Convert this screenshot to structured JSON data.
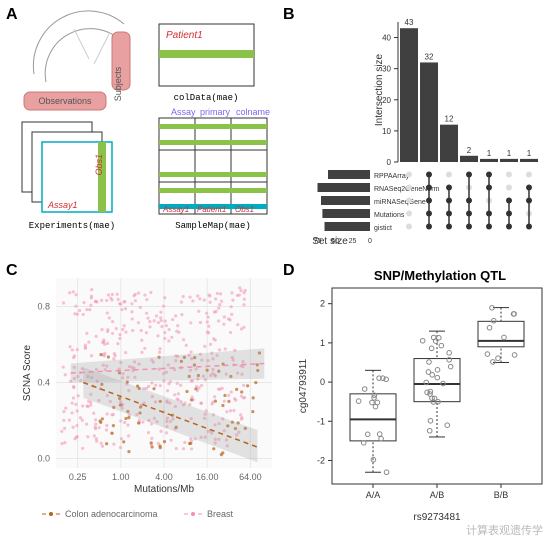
{
  "panels": {
    "A": "A",
    "B": "B",
    "C": "C",
    "D": "D"
  },
  "A": {
    "subjects_label": "Subjects",
    "observations_label": "Observations",
    "patient1": "Patient1",
    "obs1": "Obs1",
    "assay1": "Assay1",
    "colData": "colData(mae)",
    "experiments": "Experiments(mae)",
    "sampleMap": "SampleMap(mae)",
    "assay_col": "Assay",
    "primary_col": "primary",
    "colname_col": "colname",
    "green": "#8bc34a",
    "pink": "#e8a0a0",
    "red": "#d32f2f",
    "purple": "#7b68ee",
    "teal": "#00acc1"
  },
  "B": {
    "ylabel": "Intersection size",
    "xlabel": "Set size",
    "bars": [
      43,
      32,
      12,
      2,
      1,
      1,
      1
    ],
    "ylim": [
      0,
      45
    ],
    "yticks": [
      0,
      10,
      20,
      30,
      40
    ],
    "sets": [
      "RPPAArray",
      "RNASeq2GeneNorm",
      "miRNASeqGene",
      "Mutations",
      "gistict"
    ],
    "set_sizes": [
      60,
      75,
      70,
      68,
      65
    ],
    "set_xticks": [
      75,
      50,
      25,
      0
    ],
    "matrix": [
      [
        0,
        0,
        0,
        0,
        0
      ],
      [
        1,
        1,
        1,
        1,
        1
      ],
      [
        0,
        1,
        1,
        1,
        1
      ],
      [
        1,
        0,
        1,
        1,
        1
      ],
      [
        1,
        1,
        0,
        1,
        1
      ],
      [
        0,
        0,
        1,
        1,
        1
      ],
      [
        0,
        1,
        1,
        0,
        1
      ]
    ],
    "bar_color": "#404040"
  },
  "C": {
    "xlabel": "Mutations/Mb",
    "ylabel": "SCNA Score",
    "xticks": [
      0.25,
      1.0,
      4.0,
      16.0,
      64.0
    ],
    "yticks": [
      0.0,
      0.4,
      0.8
    ],
    "legend": [
      "Colon adenocarcinoma",
      "Breast"
    ],
    "colors": {
      "colon": "#b5651d",
      "breast": "#f48fb1"
    },
    "grid": "#e8e8e8"
  },
  "D": {
    "title": "SNP/Methylation QTL",
    "xlabel": "rs9273481",
    "ylabel": "cg04793911",
    "categories": [
      "A/A",
      "A/B",
      "B/B"
    ],
    "yticks": [
      -2,
      -1,
      0,
      1,
      2
    ],
    "boxes": [
      {
        "q1": -1.5,
        "med": -0.95,
        "q3": -0.3,
        "lw": -2.3,
        "uw": 0.3
      },
      {
        "q1": -0.5,
        "med": -0.05,
        "q3": 0.6,
        "lw": -1.4,
        "uw": 1.3
      },
      {
        "q1": 0.9,
        "med": 1.05,
        "q3": 1.55,
        "lw": 0.5,
        "uw": 1.9
      }
    ],
    "point_color": "#888888"
  },
  "watermark": "计算表观遗传学"
}
